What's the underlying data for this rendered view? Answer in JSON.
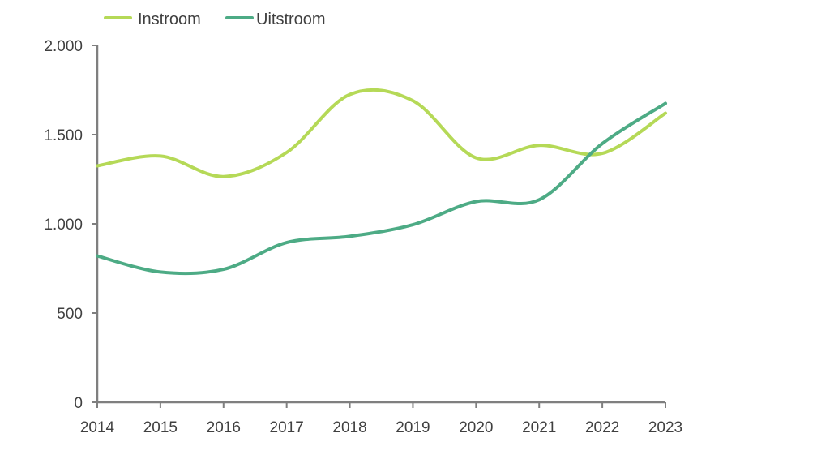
{
  "chart_data": {
    "type": "line",
    "title": "",
    "xlabel": "",
    "ylabel": "",
    "categories": [
      "2014",
      "2015",
      "2016",
      "2017",
      "2018",
      "2019",
      "2020",
      "2021",
      "2022",
      "2023"
    ],
    "y_ticks": [
      0,
      500,
      1000,
      1500,
      2000
    ],
    "y_tick_labels": [
      "0",
      "500",
      "1.000",
      "1.500",
      "2.000"
    ],
    "ylim": [
      0,
      2000
    ],
    "grid": false,
    "legend_position": "top-left",
    "series": [
      {
        "name": "Instroom",
        "color": "#b5d957",
        "values": [
          1325,
          1380,
          1265,
          1400,
          1725,
          1690,
          1370,
          1440,
          1395,
          1620
        ]
      },
      {
        "name": "Uitstroom",
        "color": "#4dab85",
        "values": [
          820,
          730,
          745,
          895,
          930,
          995,
          1125,
          1135,
          1450,
          1675
        ]
      }
    ]
  }
}
